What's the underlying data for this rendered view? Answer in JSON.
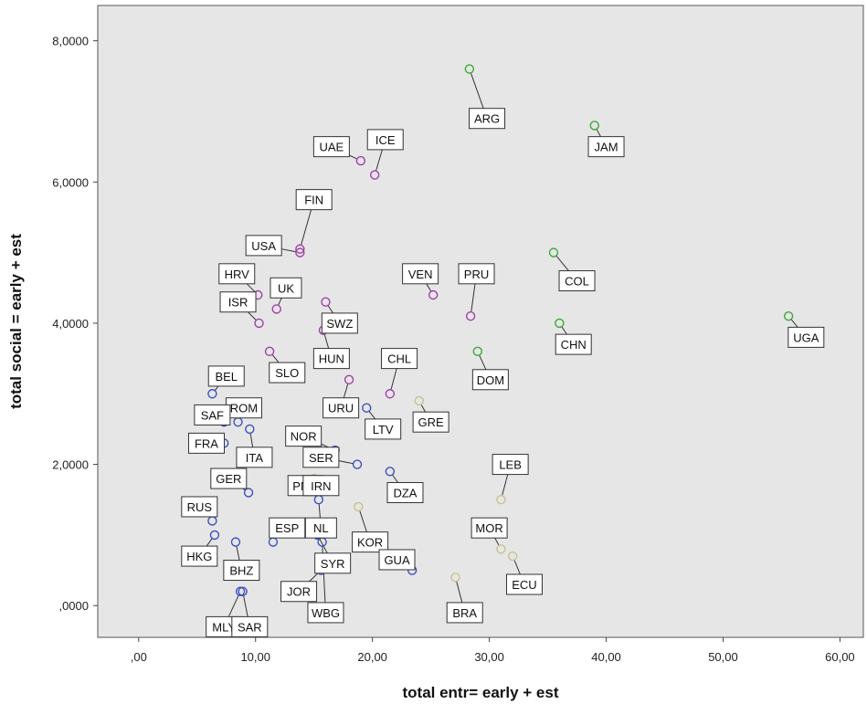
{
  "chart_data": {
    "type": "scatter",
    "xlabel": "total entr= early + est",
    "ylabel": "total social = early + est",
    "xlim": [
      -3.5,
      62
    ],
    "ylim": [
      -0.45,
      8.5
    ],
    "x_ticks": [
      0,
      10,
      20,
      30,
      40,
      50,
      60
    ],
    "x_tick_labels": [
      ",00",
      "10,00",
      "20,00",
      "30,00",
      "40,00",
      "50,00",
      "60,00"
    ],
    "y_ticks": [
      0,
      2,
      4,
      6,
      8
    ],
    "y_tick_labels": [
      ",0000",
      "2,0000",
      "4,0000",
      "6,0000",
      "8,0000"
    ],
    "grid": false,
    "legend": "none",
    "colors": {
      "background": "#e6e6e6",
      "purple": "#a040a8",
      "green": "#3aaa35",
      "blue": "#3c50c0",
      "tan": "#c8c28c"
    },
    "points": [
      {
        "label": "ARG",
        "x": 28.3,
        "y": 7.6,
        "group": "green",
        "lx": 1.5,
        "ly": -0.7
      },
      {
        "label": "JAM",
        "x": 39.0,
        "y": 6.8,
        "group": "green",
        "lx": 1.0,
        "ly": -0.3
      },
      {
        "label": "UAE",
        "x": 19.0,
        "y": 6.3,
        "group": "purple",
        "lx": -2.5,
        "ly": 0.2
      },
      {
        "label": "ICE",
        "x": 20.2,
        "y": 6.1,
        "group": "purple",
        "lx": 0.9,
        "ly": 0.5
      },
      {
        "label": "COL",
        "x": 35.5,
        "y": 5.0,
        "group": "green",
        "lx": 2.0,
        "ly": -0.4
      },
      {
        "label": "FIN",
        "x": 13.8,
        "y": 5.05,
        "group": "purple",
        "lx": 1.2,
        "ly": 0.7
      },
      {
        "label": "USA",
        "x": 13.8,
        "y": 5.0,
        "group": "purple",
        "lx": -3.1,
        "ly": 0.1
      },
      {
        "label": "HRV",
        "x": 10.2,
        "y": 4.4,
        "group": "purple",
        "lx": -1.8,
        "ly": 0.3
      },
      {
        "label": "UK",
        "x": 11.8,
        "y": 4.2,
        "group": "purple",
        "lx": 0.8,
        "ly": 0.3
      },
      {
        "label": "ISR",
        "x": 10.3,
        "y": 4.0,
        "group": "purple",
        "lx": -1.8,
        "ly": 0.3
      },
      {
        "label": "VEN",
        "x": 25.2,
        "y": 4.4,
        "group": "purple",
        "lx": -1.1,
        "ly": 0.3
      },
      {
        "label": "PRU",
        "x": 28.4,
        "y": 4.1,
        "group": "purple",
        "lx": 0.5,
        "ly": 0.6
      },
      {
        "label": "SWZ",
        "x": 16.0,
        "y": 4.3,
        "group": "purple",
        "lx": 1.2,
        "ly": -0.3
      },
      {
        "label": "HUN",
        "x": 15.8,
        "y": 3.9,
        "group": "purple",
        "lx": 0.7,
        "ly": -0.4
      },
      {
        "label": "CHN",
        "x": 36.0,
        "y": 4.0,
        "group": "green",
        "lx": 1.2,
        "ly": -0.3
      },
      {
        "label": "UGA",
        "x": 55.6,
        "y": 4.1,
        "group": "green",
        "lx": 1.5,
        "ly": -0.3
      },
      {
        "label": "SLO",
        "x": 11.2,
        "y": 3.6,
        "group": "purple",
        "lx": 1.5,
        "ly": -0.3
      },
      {
        "label": "DOM",
        "x": 29.0,
        "y": 3.6,
        "group": "green",
        "lx": 1.1,
        "ly": -0.4
      },
      {
        "label": "CHL",
        "x": 21.5,
        "y": 3.0,
        "group": "purple",
        "lx": 0.8,
        "ly": 0.5
      },
      {
        "label": "URU",
        "x": 18.0,
        "y": 3.2,
        "group": "purple",
        "lx": -0.7,
        "ly": -0.4
      },
      {
        "label": "BEL",
        "x": 6.3,
        "y": 3.0,
        "group": "blue",
        "lx": 1.2,
        "ly": 0.25
      },
      {
        "label": "ROM",
        "x": 8.5,
        "y": 2.6,
        "group": "blue",
        "lx": 0.5,
        "ly": 0.2
      },
      {
        "label": "SAF",
        "x": 7.3,
        "y": 2.6,
        "group": "blue",
        "lx": -1.0,
        "ly": 0.1
      },
      {
        "label": "FRA",
        "x": 7.3,
        "y": 2.3,
        "group": "blue",
        "lx": -1.5,
        "ly": 0.0
      },
      {
        "label": "ITA",
        "x": 9.5,
        "y": 2.5,
        "group": "blue",
        "lx": 0.4,
        "ly": -0.4
      },
      {
        "label": "LTV",
        "x": 19.5,
        "y": 2.8,
        "group": "blue",
        "lx": 1.4,
        "ly": -0.3
      },
      {
        "label": "GRE",
        "x": 24.0,
        "y": 2.9,
        "group": "tan",
        "lx": 1.0,
        "ly": -0.3
      },
      {
        "label": "NOR",
        "x": 16.8,
        "y": 2.2,
        "group": "blue",
        "lx": -2.7,
        "ly": 0.2
      },
      {
        "label": "SER",
        "x": 18.7,
        "y": 2.0,
        "group": "blue",
        "lx": -3.1,
        "ly": 0.1
      },
      {
        "label": "GER",
        "x": 9.4,
        "y": 1.6,
        "group": "blue",
        "lx": -1.7,
        "ly": 0.2
      },
      {
        "label": "PNM",
        "x": 13.8,
        "y": 1.7,
        "group": "blue",
        "lx": 0.5,
        "ly": 0.0
      },
      {
        "label": "IRN",
        "x": 15.0,
        "y": 1.8,
        "group": "tan",
        "lx": 0.6,
        "ly": -0.1
      },
      {
        "label": "DZA",
        "x": 21.5,
        "y": 1.9,
        "group": "blue",
        "lx": 1.3,
        "ly": -0.3
      },
      {
        "label": "LEB",
        "x": 31.0,
        "y": 1.5,
        "group": "tan",
        "lx": 0.8,
        "ly": 0.5
      },
      {
        "label": "RUS",
        "x": 6.3,
        "y": 1.2,
        "group": "blue",
        "lx": -1.1,
        "ly": 0.2
      },
      {
        "label": "NL",
        "x": 15.4,
        "y": 1.5,
        "group": "blue",
        "lx": 0.2,
        "ly": -0.4
      },
      {
        "label": "KOR",
        "x": 18.8,
        "y": 1.4,
        "group": "tan",
        "lx": 1.0,
        "ly": -0.5
      },
      {
        "label": "ESP",
        "x": 11.5,
        "y": 0.9,
        "group": "blue",
        "lx": 1.2,
        "ly": 0.2
      },
      {
        "label": "MOR",
        "x": 31.0,
        "y": 0.8,
        "group": "tan",
        "lx": -1.0,
        "ly": 0.3
      },
      {
        "label": "HKG",
        "x": 6.5,
        "y": 1.0,
        "group": "blue",
        "lx": -1.3,
        "ly": -0.3
      },
      {
        "label": "BHZ",
        "x": 8.3,
        "y": 0.9,
        "group": "blue",
        "lx": 0.5,
        "ly": -0.4
      },
      {
        "label": "SYR",
        "x": 15.3,
        "y": 1.0,
        "group": "blue",
        "lx": 1.3,
        "ly": -0.4
      },
      {
        "label": "GUA",
        "x": 23.4,
        "y": 0.5,
        "group": "blue",
        "lx": -1.3,
        "ly": 0.15
      },
      {
        "label": "ECU",
        "x": 32.0,
        "y": 0.7,
        "group": "tan",
        "lx": 1.0,
        "ly": -0.4
      },
      {
        "label": "JOR",
        "x": 15.6,
        "y": 0.5,
        "group": "blue",
        "lx": -1.9,
        "ly": -0.3
      },
      {
        "label": "WBG",
        "x": 15.7,
        "y": 0.9,
        "group": "blue",
        "lx": 0.3,
        "ly": -1.0
      },
      {
        "label": "BRA",
        "x": 27.1,
        "y": 0.4,
        "group": "tan",
        "lx": 0.8,
        "ly": -0.5
      },
      {
        "label": "MLY",
        "x": 8.7,
        "y": 0.2,
        "group": "blue",
        "lx": -1.4,
        "ly": -0.5
      },
      {
        "label": "SAR",
        "x": 8.9,
        "y": 0.2,
        "group": "blue",
        "lx": 0.6,
        "ly": -0.5
      }
    ]
  }
}
